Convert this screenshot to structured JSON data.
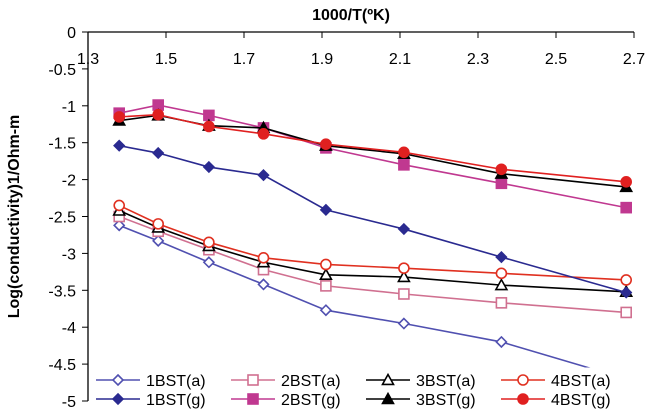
{
  "chart_data": {
    "type": "line",
    "title": "",
    "xlabel": "1000/T(ºK)",
    "ylabel": "Log(conductivity)1/Ohm-m",
    "xlim": [
      1.3,
      2.7
    ],
    "ylim": [
      -5,
      0
    ],
    "x_axis_position": "top",
    "x_ticks": [
      1.3,
      1.5,
      1.7,
      1.9,
      2.1,
      2.3,
      2.5,
      2.7
    ],
    "x_tick_labels": [
      "1.3",
      "1.5",
      "1.7",
      "1.9",
      "2.1",
      "2.3",
      "2.5",
      "2.7"
    ],
    "y_ticks": [
      0,
      -0.5,
      -1,
      -1.5,
      -2,
      -2.5,
      -3,
      -3.5,
      -4,
      -4.5,
      -5
    ],
    "y_tick_labels": [
      "0",
      "-0.5",
      "-1",
      "-1.5",
      "-2",
      "-2.5",
      "-3",
      "-3.5",
      "-4",
      "-4.5",
      "-5"
    ],
    "grid": false,
    "legend_position": "bottom",
    "x": [
      1.38,
      1.48,
      1.61,
      1.75,
      1.91,
      2.11,
      2.36,
      2.68
    ],
    "series": [
      {
        "name": "1BST(a)",
        "color": "#5050b0",
        "marker": "diamond-open",
        "values": [
          -2.62,
          -2.83,
          -3.12,
          -3.42,
          -3.77,
          -3.95,
          -4.2,
          -4.7
        ]
      },
      {
        "name": "2BST(a)",
        "color": "#d07090",
        "marker": "square-open",
        "values": [
          -2.5,
          -2.7,
          -2.95,
          -3.22,
          -3.44,
          -3.55,
          -3.67,
          -3.8
        ]
      },
      {
        "name": "3BST(a)",
        "color": "#000000",
        "marker": "triangle-open",
        "values": [
          -2.42,
          -2.65,
          -2.9,
          -3.12,
          -3.29,
          -3.32,
          -3.43,
          -3.52
        ]
      },
      {
        "name": "4BST(a)",
        "color": "#e03020",
        "marker": "circle-open",
        "values": [
          -2.35,
          -2.6,
          -2.85,
          -3.06,
          -3.15,
          -3.2,
          -3.27,
          -3.36
        ]
      },
      {
        "name": "1BST(g)",
        "color": "#2a2a90",
        "marker": "diamond-filled",
        "values": [
          -1.54,
          -1.64,
          -1.83,
          -1.94,
          -2.41,
          -2.67,
          -3.05,
          -3.53
        ]
      },
      {
        "name": "2BST(g)",
        "color": "#c03890",
        "marker": "square-filled",
        "values": [
          -1.1,
          -0.99,
          -1.13,
          -1.3,
          -1.57,
          -1.8,
          -2.05,
          -2.38
        ]
      },
      {
        "name": "3BST(g)",
        "color": "#000000",
        "marker": "triangle-filled",
        "values": [
          -1.2,
          -1.13,
          -1.27,
          -1.3,
          -1.54,
          -1.65,
          -1.92,
          -2.1
        ]
      },
      {
        "name": "4BST(g)",
        "color": "#e02020",
        "marker": "circle-filled",
        "values": [
          -1.15,
          -1.12,
          -1.28,
          -1.38,
          -1.52,
          -1.63,
          -1.86,
          -2.03
        ]
      }
    ]
  }
}
